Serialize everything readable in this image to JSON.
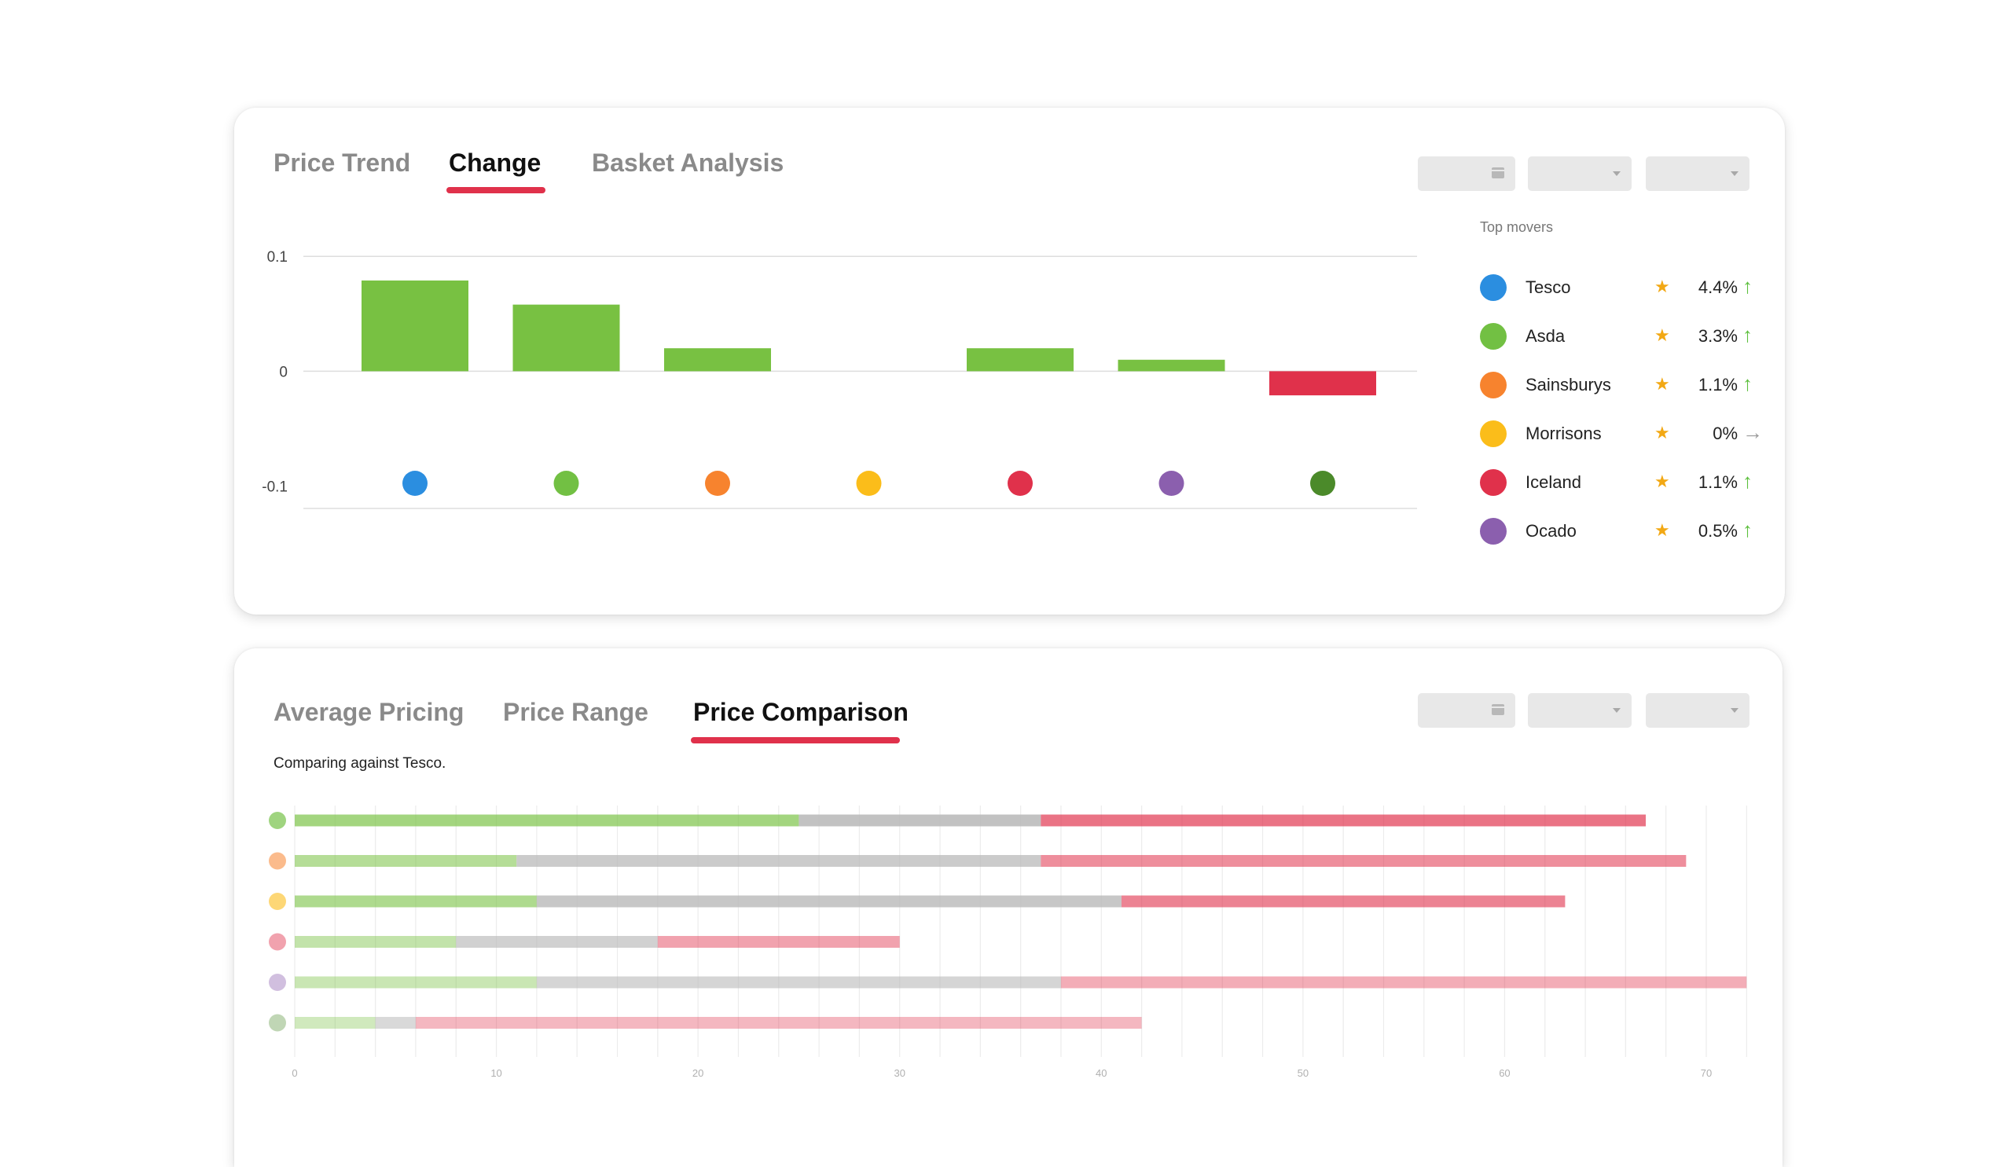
{
  "change_panel": {
    "tabs": [
      {
        "label": "Price Trend",
        "active": false
      },
      {
        "label": "Change",
        "active": true
      },
      {
        "label": "Basket Analysis",
        "active": false
      }
    ],
    "controls": [
      {
        "kind": "date",
        "icon": "calendar-icon",
        "value": ""
      },
      {
        "kind": "select",
        "icon": "chevron-down-icon",
        "value": ""
      },
      {
        "kind": "select",
        "icon": "chevron-down-icon",
        "value": ""
      }
    ],
    "top_movers": {
      "title": "Top movers",
      "items": [
        {
          "name": "Tesco",
          "color": "#2b8ee0",
          "pct": "4.4%",
          "direction": "up"
        },
        {
          "name": "Asda",
          "color": "#72c043",
          "pct": "3.3%",
          "direction": "up"
        },
        {
          "name": "Sainsburys",
          "color": "#f7832e",
          "pct": "1.1%",
          "direction": "up"
        },
        {
          "name": "Morrisons",
          "color": "#fbbd1a",
          "pct": "0%",
          "direction": "flat"
        },
        {
          "name": "Iceland",
          "color": "#e0314b",
          "pct": "1.1%",
          "direction": "up"
        },
        {
          "name": "Ocado",
          "color": "#8b5fae",
          "pct": "0.5%",
          "direction": "up"
        }
      ]
    }
  },
  "comparison_panel": {
    "tabs": [
      {
        "label": "Average Pricing",
        "active": false
      },
      {
        "label": "Price Range",
        "active": false
      },
      {
        "label": "Price Comparison",
        "active": true
      }
    ],
    "subtitle": "Comparing against Tesco.",
    "controls": [
      {
        "kind": "date",
        "icon": "calendar-icon",
        "value": ""
      },
      {
        "kind": "select",
        "icon": "chevron-down-icon",
        "value": ""
      },
      {
        "kind": "select",
        "icon": "chevron-down-icon",
        "value": ""
      }
    ]
  },
  "colors": {
    "accent": "#e0314b",
    "positive": "#78c142",
    "negative": "#e0314b",
    "up_arrow": "#5cbf3c",
    "flat_arrow": "#999999",
    "star": "#f2a814"
  },
  "chart_data": [
    {
      "type": "bar",
      "y_ticks": [
        "0.1",
        "0",
        "-0.1"
      ],
      "ylim": [
        -0.14,
        0.12
      ],
      "grid": true,
      "legend": "none",
      "category_markers": [
        {
          "color": "#2b8ee0"
        },
        {
          "color": "#72c043"
        },
        {
          "color": "#f7832e"
        },
        {
          "color": "#fbbd1a"
        },
        {
          "color": "#e0314b"
        },
        {
          "color": "#8b5fae"
        },
        {
          "color": "#4b8a2a"
        }
      ],
      "values": [
        0.079,
        0.058,
        0.02,
        0,
        0.02,
        0.01,
        -0.021
      ]
    },
    {
      "type": "bar",
      "orientation": "horizontal",
      "stacked": true,
      "x_ticks": [
        "0",
        "10",
        "20",
        "30",
        "40",
        "50",
        "60",
        "70"
      ],
      "xlim": [
        0,
        72
      ],
      "grid": true,
      "segment_colors": [
        "#78c142",
        "#b9b9b9",
        "#e0314b"
      ],
      "rows": [
        {
          "marker_color": "#72c043",
          "opacity": 0.68,
          "segments": [
            25,
            12,
            30
          ]
        },
        {
          "marker_color": "#f7832e",
          "opacity": 0.55,
          "segments": [
            11,
            26,
            32
          ]
        },
        {
          "marker_color": "#fbbd1a",
          "opacity": 0.6,
          "segments": [
            12,
            29,
            22
          ]
        },
        {
          "marker_color": "#e0314b",
          "opacity": 0.45,
          "segments": [
            8,
            10,
            12
          ]
        },
        {
          "marker_color": "#8b5fae",
          "opacity": 0.4,
          "segments": [
            12,
            26,
            34
          ]
        },
        {
          "marker_color": "#4b8a2a",
          "opacity": 0.35,
          "segments": [
            4,
            2,
            36
          ]
        }
      ]
    }
  ]
}
